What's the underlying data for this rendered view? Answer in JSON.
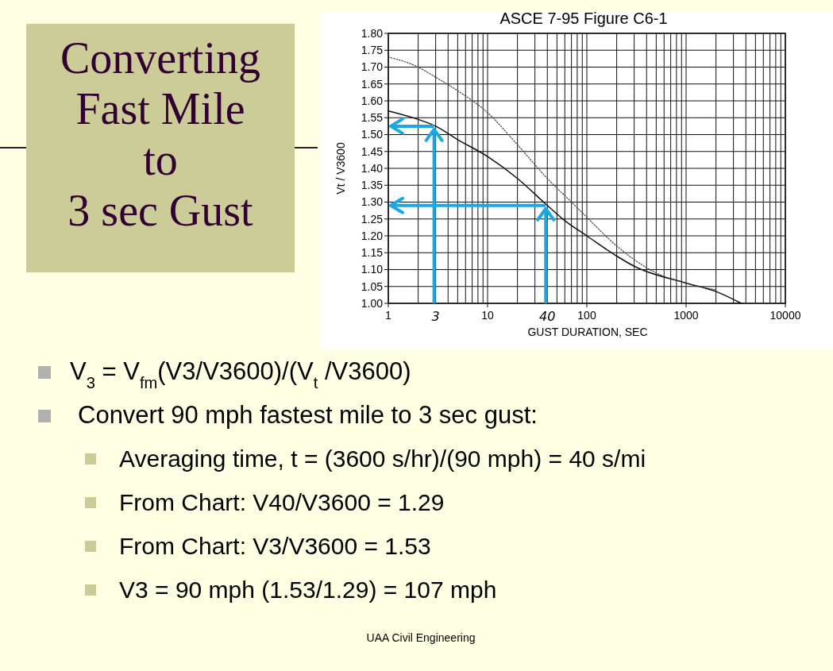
{
  "chart_data": {
    "type": "line",
    "title": "ASCE 7-95 Figure C6-1",
    "subtitle": "Converting Fast Mile to 3 sec Gust",
    "xlabel": "GUST DURATION, SEC",
    "ylabel": "Vt / V3600",
    "log": "x",
    "grid": true,
    "xlim": [
      1,
      10000
    ],
    "xticks": [
      1,
      10,
      100,
      1000,
      10000
    ],
    "ylim": [
      1.0,
      1.8
    ],
    "yticks": [
      {
        "value": 1.0,
        "label": "1.00"
      },
      {
        "value": 1.05,
        "label": "1.05"
      },
      {
        "value": 1.1,
        "label": "1.10"
      },
      {
        "value": 1.15,
        "label": "1.15"
      },
      {
        "value": 1.2,
        "label": "1.20"
      },
      {
        "value": 1.25,
        "label": "1.25"
      },
      {
        "value": 1.3,
        "label": "1.30"
      },
      {
        "value": 1.35,
        "label": "1.35"
      },
      {
        "value": 1.4,
        "label": "1.40"
      },
      {
        "value": 1.45,
        "label": "1.45"
      },
      {
        "value": 1.5,
        "label": "1.50"
      },
      {
        "value": 1.55,
        "label": "1.55"
      },
      {
        "value": 1.6,
        "label": "1.60"
      },
      {
        "value": 1.65,
        "label": "1.65"
      },
      {
        "value": 1.7,
        "label": "1.70"
      },
      {
        "value": 1.75,
        "label": "1.75"
      },
      {
        "value": 1.8,
        "label": "1.80"
      }
    ],
    "series": [
      {
        "color": "#111111",
        "line_style": "solid",
        "x": [
          1,
          2,
          3,
          5,
          10,
          20,
          40,
          60,
          100,
          200,
          300,
          1000,
          2000,
          3600
        ],
        "values": [
          1.57,
          1.545,
          1.525,
          1.485,
          1.435,
          1.37,
          1.29,
          1.245,
          1.2,
          1.14,
          1.11,
          1.06,
          1.035,
          1.0
        ]
      },
      {
        "color": "#444444",
        "line_style": "dotted",
        "x": [
          1,
          2,
          3,
          5,
          10,
          20,
          40,
          70,
          100,
          200,
          500,
          1000,
          2000
        ],
        "values": [
          1.73,
          1.7,
          1.67,
          1.63,
          1.565,
          1.47,
          1.37,
          1.3,
          1.255,
          1.17,
          1.09,
          1.06,
          1.04
        ]
      }
    ],
    "annotations": [
      "V$_{3}$ = V$_{fm}$(V3/V3600)/(V$_{t}$ /V3600)",
      "Convert 90 mph fastest mile to 3 sec gust:",
      "Averaging time, t = (3600 s/hr)/(90 mph) = 40 s/mi",
      "From Chart: V40/V3600 = 1.29",
      "From Chart: V3/V3600 = 1.53",
      "V3 = 90 mph (1.53/1.29) = 107 mph",
      "UAA Civil Engineering",
      {
        "text": "3",
        "x": 3,
        "y": 1.525
      },
      {
        "text": "40",
        "x": 40,
        "y": 1.29
      }
    ]
  }
}
